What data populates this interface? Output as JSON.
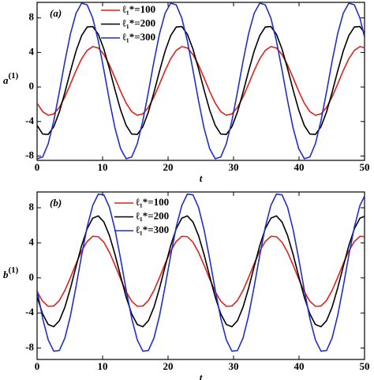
{
  "chart_data": [
    {
      "type": "line",
      "panel_label": "(a)",
      "x_label": "t",
      "y_label": {
        "base": "a",
        "sup": "(1)"
      },
      "xlim": [
        0,
        50
      ],
      "ylim": [
        -8.5,
        9.8
      ],
      "xticks": [
        0,
        10,
        20,
        30,
        40,
        50
      ],
      "yticks": [
        -8,
        -4,
        0,
        4,
        8
      ],
      "x": [
        0,
        0.85,
        1.7,
        2.55,
        3.4,
        4.25,
        5.1,
        5.95,
        6.8,
        7.65,
        8.5,
        9.35,
        10.2,
        11.05,
        11.9,
        12.75,
        13.6,
        14.45,
        15.3,
        16.15,
        17,
        17.85,
        18.7,
        19.55,
        20.4,
        21.25,
        22.1,
        22.95,
        23.8,
        24.65,
        25.5,
        26.35,
        27.2,
        28.05,
        28.9,
        29.75,
        30.6,
        31.45,
        32.3,
        33.15,
        34,
        34.85,
        35.7,
        36.55,
        37.4,
        38.25,
        39.1,
        39.95,
        40.8,
        41.65,
        42.5,
        43.35,
        44.2,
        45.05,
        45.9,
        46.75,
        47.6,
        48.45,
        49.3,
        50.15
      ],
      "series": [
        {
          "name": "ℓ₁*=100",
          "color": "#e0201b",
          "values": [
            -1.87,
            -2.85,
            -3.28,
            -3.12,
            -2.36,
            -1.15,
            0.35,
            1.9,
            3.27,
            4.25,
            4.68,
            4.52,
            3.76,
            2.55,
            1.05,
            -0.5,
            -1.87,
            -2.85,
            -3.28,
            -3.12,
            -2.36,
            -1.15,
            0.35,
            1.9,
            3.27,
            4.25,
            4.68,
            4.52,
            3.76,
            2.55,
            1.05,
            -0.5,
            -1.87,
            -2.85,
            -3.28,
            -3.12,
            -2.36,
            -1.15,
            0.35,
            1.9,
            3.27,
            4.25,
            4.68,
            4.52,
            3.76,
            2.55,
            1.05,
            -0.5,
            -1.87,
            -2.85,
            -3.28,
            -3.12,
            -2.36,
            -1.15,
            0.35,
            1.9,
            3.27,
            4.25,
            4.68,
            4.52
          ]
        },
        {
          "name": "ℓ₁*=200",
          "color": "#000000",
          "values": [
            -4.45,
            -5.45,
            -5.5,
            -4.6,
            -2.89,
            -0.62,
            1.85,
            4.16,
            5.95,
            6.95,
            7,
            6.1,
            4.39,
            2.12,
            -0.35,
            -2.66,
            -4.45,
            -5.45,
            -5.5,
            -4.6,
            -2.89,
            -0.62,
            1.85,
            4.16,
            5.95,
            6.95,
            7,
            6.1,
            4.39,
            2.12,
            -0.35,
            -2.66,
            -4.45,
            -5.45,
            -5.5,
            -4.6,
            -2.89,
            -0.62,
            1.85,
            4.16,
            5.95,
            6.95,
            7,
            6.1,
            4.39,
            2.12,
            -0.35,
            -2.66,
            -4.45,
            -5.45,
            -5.5,
            -4.6,
            -2.89,
            -0.62,
            1.85,
            4.16,
            5.95,
            6.95,
            7,
            6.1
          ]
        },
        {
          "name": "ℓ₁*=300",
          "color": "#1f2fc8",
          "values": [
            -8.31,
            -8.11,
            -6.57,
            -3.92,
            -0.56,
            2.98,
            6.18,
            8.54,
            9.71,
            9.51,
            7.97,
            5.32,
            1.96,
            -1.58,
            -4.78,
            -7.14,
            -8.31,
            -8.11,
            -6.57,
            -3.92,
            -0.56,
            2.98,
            6.18,
            8.54,
            9.71,
            9.51,
            7.97,
            5.32,
            1.96,
            -1.58,
            -4.78,
            -7.14,
            -8.31,
            -8.11,
            -6.57,
            -3.92,
            -0.56,
            2.98,
            6.18,
            8.54,
            9.71,
            9.51,
            7.97,
            5.32,
            1.96,
            -1.58,
            -4.78,
            -7.14,
            -8.31,
            -8.11,
            -6.57,
            -3.92,
            -0.56,
            2.98,
            6.18,
            8.54,
            9.71,
            9.51,
            7.97,
            5.32
          ]
        }
      ]
    },
    {
      "type": "line",
      "panel_label": "(b)",
      "x_label": "t",
      "y_label": {
        "base": "b",
        "sup": "(1)"
      },
      "xlim": [
        0,
        50
      ],
      "ylim": [
        -9.3,
        9.8
      ],
      "xticks": [
        0,
        10,
        20,
        30,
        40,
        50
      ],
      "yticks": [
        -8,
        -4,
        0,
        4,
        8
      ],
      "x": [
        0,
        0.85,
        1.7,
        2.55,
        3.4,
        4.25,
        5.1,
        5.95,
        6.8,
        7.65,
        8.5,
        9.35,
        10.2,
        11.05,
        11.9,
        12.75,
        13.6,
        14.45,
        15.3,
        16.15,
        17,
        17.85,
        18.7,
        19.55,
        20.4,
        21.25,
        22.1,
        22.95,
        23.8,
        24.65,
        25.5,
        26.35,
        27.2,
        28.05,
        28.9,
        29.75,
        30.6,
        31.45,
        32.3,
        33.15,
        34,
        34.85,
        35.7,
        36.55,
        37.4,
        38.25,
        39.1,
        39.95,
        40.8,
        41.65,
        42.5,
        43.35,
        44.2,
        45.05,
        45.9,
        46.75,
        47.6,
        48.45,
        49.3,
        50.15
      ],
      "series": [
        {
          "name": "ℓ₁*=100",
          "color": "#e0201b",
          "values": [
            -1.57,
            -2.66,
            -3.24,
            -3.2,
            -2.57,
            -1.42,
            0.05,
            1.62,
            3.07,
            4.16,
            4.74,
            4.7,
            4.07,
            2.92,
            1.45,
            -0.12,
            -1.57,
            -2.66,
            -3.24,
            -3.2,
            -2.57,
            -1.42,
            0.05,
            1.62,
            3.07,
            4.16,
            4.74,
            4.7,
            4.07,
            2.92,
            1.45,
            -0.12,
            -1.57,
            -2.66,
            -3.24,
            -3.2,
            -2.57,
            -1.42,
            0.05,
            1.62,
            3.07,
            4.16,
            4.74,
            4.7,
            4.07,
            2.92,
            1.45,
            -0.12,
            -1.57,
            -2.66,
            -3.24,
            -3.2,
            -2.57,
            -1.42,
            0.05,
            1.62,
            3.07,
            4.16,
            4.74,
            4.7
          ]
        },
        {
          "name": "ℓ₁*=200",
          "color": "#000000",
          "values": [
            -2.18,
            -4.11,
            -5.31,
            -5.57,
            -4.88,
            -3.33,
            -1.16,
            1.3,
            3.68,
            5.61,
            6.81,
            7.07,
            6.38,
            4.83,
            2.66,
            0.2,
            -2.18,
            -4.11,
            -5.31,
            -5.57,
            -4.88,
            -3.33,
            -1.16,
            1.3,
            3.68,
            5.61,
            6.81,
            7.07,
            6.38,
            4.83,
            2.66,
            0.2,
            -2.18,
            -4.11,
            -5.31,
            -5.57,
            -4.88,
            -3.33,
            -1.16,
            1.3,
            3.68,
            5.61,
            6.81,
            7.07,
            6.38,
            4.83,
            2.66,
            0.2,
            -2.18,
            -4.11,
            -5.31,
            -5.57,
            -4.88,
            -3.33,
            -1.16,
            1.3,
            3.68,
            5.61,
            6.81,
            7.07
          ]
        },
        {
          "name": "ℓ₁*=300",
          "color": "#1f2fc8",
          "values": [
            -1.37,
            -4.62,
            -7.07,
            -8.36,
            -8.28,
            -6.85,
            -4.29,
            -0.98,
            2.57,
            5.82,
            8.27,
            9.56,
            9.48,
            8.05,
            5.49,
            2.18,
            -1.37,
            -4.62,
            -7.07,
            -8.36,
            -8.28,
            -6.85,
            -4.29,
            -0.98,
            2.57,
            5.82,
            8.27,
            9.56,
            9.48,
            8.05,
            5.49,
            2.18,
            -1.37,
            -4.62,
            -7.07,
            -8.36,
            -8.28,
            -6.85,
            -4.29,
            -0.98,
            2.57,
            5.82,
            8.27,
            9.56,
            9.48,
            8.05,
            5.49,
            2.18,
            -1.37,
            -4.62,
            -7.07,
            -8.36,
            -8.28,
            -6.85,
            -4.29,
            -0.98,
            2.57,
            5.82,
            8.27,
            9.56
          ]
        }
      ]
    }
  ]
}
